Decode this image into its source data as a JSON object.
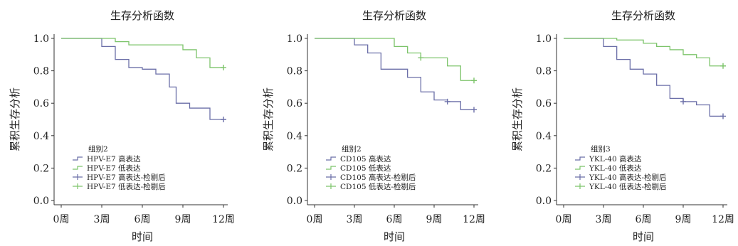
{
  "chart_data": [
    {
      "type": "line",
      "title": "生存分析函数",
      "xlabel": "时间",
      "ylabel": "累积生存分析",
      "x_ticks": [
        "0周",
        "3周",
        "6周",
        "9周",
        "12周"
      ],
      "x_tick_values": [
        0,
        3,
        6,
        9,
        12
      ],
      "y_ticks": [
        "0.0",
        "0.2",
        "0.4",
        "0.6",
        "0.8",
        "1.0"
      ],
      "y_tick_values": [
        0,
        0.2,
        0.4,
        0.6,
        0.8,
        1.0
      ],
      "xlim": [
        0,
        12
      ],
      "ylim": [
        0,
        1.0
      ],
      "legend_title": "组别2",
      "legend_entries": [
        "HPV-E7 高表达",
        "HPV-E7 低表达",
        "HPV-E7 高表达-检剔后",
        "HPV-E7 低表达-检剔后"
      ],
      "legend_position": "bottom-left",
      "series": [
        {
          "name": "HPV-E7 高表达",
          "color": "#6b6fa8",
          "steps": [
            [
              0,
              1.0
            ],
            [
              3,
              0.95
            ],
            [
              4,
              0.87
            ],
            [
              5,
              0.82
            ],
            [
              6,
              0.81
            ],
            [
              7,
              0.78
            ],
            [
              8,
              0.7
            ],
            [
              8.5,
              0.6
            ],
            [
              9.5,
              0.57
            ],
            [
              11,
              0.5
            ],
            [
              12,
              0.5
            ]
          ],
          "censored": [
            [
              12,
              0.5
            ]
          ]
        },
        {
          "name": "HPV-E7 低表达",
          "color": "#7cc46a",
          "steps": [
            [
              0,
              1.0
            ],
            [
              4,
              0.98
            ],
            [
              5,
              0.96
            ],
            [
              9,
              0.93
            ],
            [
              10,
              0.88
            ],
            [
              11,
              0.82
            ],
            [
              12,
              0.82
            ]
          ],
          "censored": [
            [
              12,
              0.82
            ]
          ]
        }
      ]
    },
    {
      "type": "line",
      "title": "生存分析函数",
      "xlabel": "时间",
      "ylabel": "累积生存分析",
      "x_ticks": [
        "0周",
        "3周",
        "6周",
        "9周",
        "12周"
      ],
      "x_tick_values": [
        0,
        3,
        6,
        9,
        12
      ],
      "y_ticks": [
        "0.0",
        "0.2",
        "0.4",
        "0.6",
        "0.8",
        "1.0"
      ],
      "y_tick_values": [
        0,
        0.2,
        0.4,
        0.6,
        0.8,
        1.0
      ],
      "xlim": [
        0,
        12
      ],
      "ylim": [
        0,
        1.0
      ],
      "legend_title": "组别2",
      "legend_entries": [
        "CD105 高表达",
        "CD105 低表达",
        "CD105 高表达-检剔后",
        "CD105 低表达-检剔后"
      ],
      "legend_position": "bottom-left",
      "series": [
        {
          "name": "CD105 高表达",
          "color": "#6b6fa8",
          "steps": [
            [
              0,
              1.0
            ],
            [
              3,
              0.96
            ],
            [
              4,
              0.91
            ],
            [
              5,
              0.81
            ],
            [
              7,
              0.76
            ],
            [
              8,
              0.67
            ],
            [
              9,
              0.62
            ],
            [
              10,
              0.61
            ],
            [
              11,
              0.56
            ],
            [
              12,
              0.56
            ]
          ],
          "censored": [
            [
              10,
              0.61
            ],
            [
              12,
              0.56
            ]
          ]
        },
        {
          "name": "CD105 低表达",
          "color": "#7cc46a",
          "steps": [
            [
              0,
              1.0
            ],
            [
              6,
              0.95
            ],
            [
              7,
              0.91
            ],
            [
              8,
              0.88
            ],
            [
              10,
              0.83
            ],
            [
              11,
              0.74
            ],
            [
              12,
              0.74
            ]
          ],
          "censored": [
            [
              8,
              0.88
            ],
            [
              12,
              0.74
            ]
          ]
        }
      ]
    },
    {
      "type": "line",
      "title": "生存分析函数",
      "xlabel": "时间",
      "ylabel": "累积生存分析",
      "x_ticks": [
        "0周",
        "3周",
        "6周",
        "9周",
        "12周"
      ],
      "x_tick_values": [
        0,
        3,
        6,
        9,
        12
      ],
      "y_ticks": [
        "0.0",
        "0.2",
        "0.4",
        "0.6",
        "0.8",
        "1.0"
      ],
      "y_tick_values": [
        0,
        0.2,
        0.4,
        0.6,
        0.8,
        1.0
      ],
      "xlim": [
        0,
        12
      ],
      "ylim": [
        0,
        1.0
      ],
      "legend_title": "组别3",
      "legend_entries": [
        "YKL-40 高表达",
        "YKL-40 低表达",
        "YKL-40 高表达-检剔后",
        "YKL-40 低表达-检剔后"
      ],
      "legend_position": "bottom-left",
      "series": [
        {
          "name": "YKL-40 高表达",
          "color": "#6b6fa8",
          "steps": [
            [
              0,
              1.0
            ],
            [
              3,
              0.95
            ],
            [
              4,
              0.87
            ],
            [
              5,
              0.81
            ],
            [
              6,
              0.78
            ],
            [
              7,
              0.71
            ],
            [
              8,
              0.63
            ],
            [
              9,
              0.61
            ],
            [
              10,
              0.59
            ],
            [
              11,
              0.52
            ],
            [
              12,
              0.52
            ]
          ],
          "censored": [
            [
              9,
              0.61
            ],
            [
              12,
              0.52
            ]
          ]
        },
        {
          "name": "YKL-40 低表达",
          "color": "#7cc46a",
          "steps": [
            [
              0,
              1.0
            ],
            [
              4,
              0.99
            ],
            [
              6,
              0.97
            ],
            [
              7,
              0.95
            ],
            [
              8,
              0.93
            ],
            [
              9,
              0.9
            ],
            [
              10,
              0.88
            ],
            [
              11,
              0.83
            ],
            [
              12,
              0.83
            ]
          ],
          "censored": [
            [
              12,
              0.83
            ]
          ]
        }
      ]
    }
  ]
}
